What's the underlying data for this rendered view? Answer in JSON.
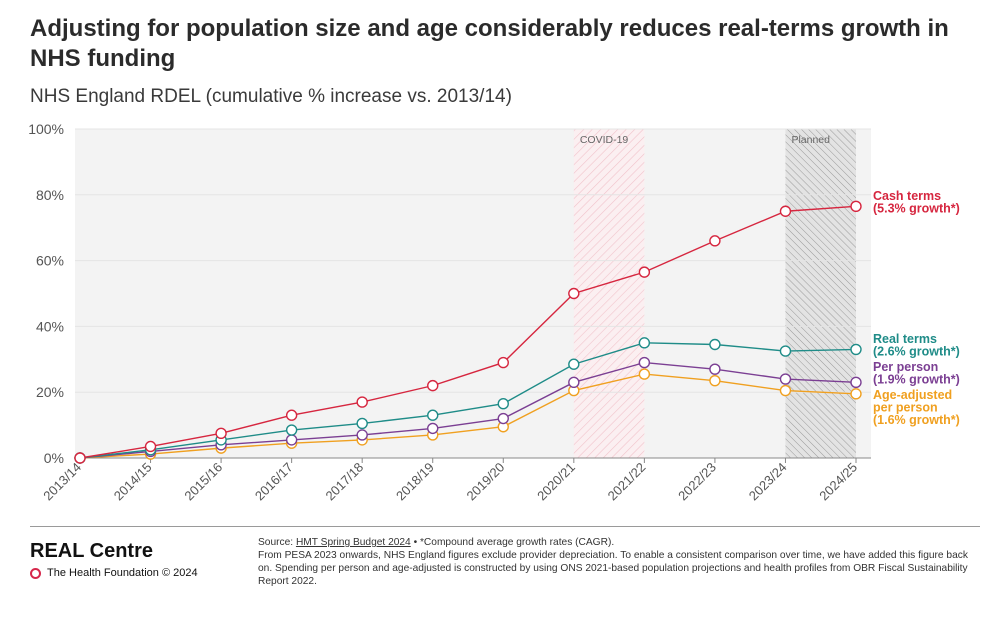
{
  "header": {
    "title": "Adjusting for population size and age considerably reduces real-terms growth in NHS funding",
    "subtitle": "NHS England RDEL (cumulative % increase vs. 2013/14)"
  },
  "chart_data": {
    "type": "line",
    "categories": [
      "2013/14",
      "2014/15",
      "2015/16",
      "2016/17",
      "2017/18",
      "2018/19",
      "2019/20",
      "2020/21",
      "2021/22",
      "2022/23",
      "2023/24",
      "2024/25"
    ],
    "ylim": [
      0,
      100
    ],
    "yticks": [
      0,
      20,
      40,
      60,
      80,
      100
    ],
    "ytick_labels": [
      "0%",
      "20%",
      "40%",
      "60%",
      "80%",
      "100%"
    ],
    "grid": true,
    "shaded_periods": [
      {
        "label": "COVID-19",
        "from": "2020/21",
        "to": "2021/22",
        "style": "red-hatch"
      },
      {
        "label": "Planned",
        "from": "2023/24",
        "to": "2024/25",
        "style": "grey-hatch"
      }
    ],
    "series": [
      {
        "name": "Cash terms",
        "label_lines": [
          "Cash terms",
          "(5.3% growth*)"
        ],
        "color": "#d6263f",
        "values": [
          0,
          3.5,
          7.5,
          13,
          17,
          22,
          29,
          50,
          56.5,
          66,
          75,
          76.5
        ]
      },
      {
        "name": "Real terms",
        "label_lines": [
          "Real terms",
          "(2.6% growth*)"
        ],
        "color": "#1f8c88",
        "values": [
          0,
          2.5,
          5.5,
          8.5,
          10.5,
          13,
          16.5,
          28.5,
          35,
          34.5,
          32.5,
          33
        ]
      },
      {
        "name": "Per person",
        "label_lines": [
          "Per person",
          "(1.9% growth*)"
        ],
        "color": "#7b3f93",
        "values": [
          0,
          2,
          4,
          5.5,
          7,
          9,
          12,
          23,
          29,
          27,
          24,
          23
        ]
      },
      {
        "name": "Age-adjusted per person",
        "label_lines": [
          "Age-adjusted",
          "per person",
          "(1.6% growth*)"
        ],
        "color": "#f0a020",
        "values": [
          0,
          1.2,
          3,
          4.5,
          5.5,
          7,
          9.5,
          20.5,
          25.5,
          23.5,
          20.5,
          19.5
        ]
      }
    ]
  },
  "footer": {
    "brand": "REAL Centre",
    "org": "The Health Foundation © 2024",
    "source_prefix": "Source:",
    "source_link": "HMT Spring Budget 2024",
    "source_suffix": " • *Compound average growth rates (CAGR).",
    "note": "From PESA 2023 onwards, NHS England figures exclude provider depreciation. To enable a consistent comparison over time, we have added this figure back on. Spending per person and age-adjusted is constructed by using ONS 2021-based population projections and health profiles from OBR Fiscal Sustainability Report 2022."
  }
}
